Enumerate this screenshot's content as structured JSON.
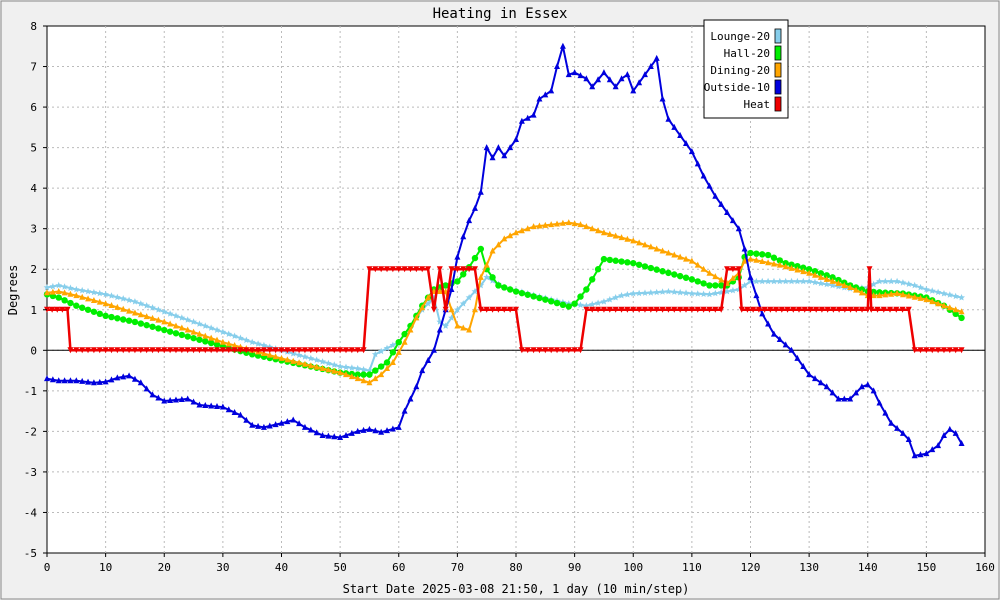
{
  "chart_data": {
    "type": "line",
    "title": "Heating in Essex",
    "xlabel": "Start Date 2025-03-08 21:50, 1 day (10 min/step)",
    "ylabel": "Degrees",
    "xlim": [
      0,
      160
    ],
    "ylim": [
      -5,
      8
    ],
    "xticks": [
      0,
      10,
      20,
      30,
      40,
      50,
      60,
      70,
      80,
      90,
      100,
      110,
      120,
      130,
      140,
      150,
      160
    ],
    "yticks": [
      -5,
      -4,
      -3,
      -2,
      -1,
      0,
      1,
      2,
      3,
      4,
      5,
      6,
      7,
      8
    ],
    "grid": true,
    "legend_position": "top-right",
    "series": [
      {
        "name": "Lounge-20",
        "color": "#87ceeb",
        "marker": "star",
        "points": [
          [
            0,
            1.55
          ],
          [
            2,
            1.6
          ],
          [
            5,
            1.5
          ],
          [
            10,
            1.38
          ],
          [
            15,
            1.2
          ],
          [
            20,
            0.95
          ],
          [
            25,
            0.7
          ],
          [
            30,
            0.45
          ],
          [
            35,
            0.2
          ],
          [
            40,
            0.0
          ],
          [
            45,
            -0.2
          ],
          [
            50,
            -0.4
          ],
          [
            53,
            -0.45
          ],
          [
            55,
            -0.5
          ],
          [
            56,
            -0.1
          ],
          [
            58,
            0.05
          ],
          [
            60,
            0.2
          ],
          [
            62,
            0.6
          ],
          [
            64,
            1.0
          ],
          [
            66,
            1.3
          ],
          [
            67,
            0.7
          ],
          [
            68,
            0.6
          ],
          [
            70,
            1.0
          ],
          [
            72,
            1.3
          ],
          [
            74,
            1.6
          ],
          [
            75,
            1.8
          ],
          [
            78,
            1.55
          ],
          [
            82,
            1.4
          ],
          [
            86,
            1.25
          ],
          [
            89,
            1.15
          ],
          [
            92,
            1.1
          ],
          [
            95,
            1.2
          ],
          [
            98,
            1.35
          ],
          [
            100,
            1.4
          ],
          [
            103,
            1.42
          ],
          [
            106,
            1.45
          ],
          [
            110,
            1.4
          ],
          [
            113,
            1.38
          ],
          [
            116,
            1.45
          ],
          [
            118,
            1.5
          ],
          [
            120,
            1.7
          ],
          [
            123,
            1.7
          ],
          [
            126,
            1.7
          ],
          [
            130,
            1.7
          ],
          [
            134,
            1.6
          ],
          [
            137,
            1.52
          ],
          [
            140,
            1.55
          ],
          [
            142,
            1.7
          ],
          [
            145,
            1.7
          ],
          [
            148,
            1.6
          ],
          [
            150,
            1.5
          ],
          [
            153,
            1.4
          ],
          [
            156,
            1.3
          ]
        ]
      },
      {
        "name": "Hall-20",
        "color": "#00ee00",
        "marker": "circle",
        "points": [
          [
            0,
            1.38
          ],
          [
            2,
            1.3
          ],
          [
            5,
            1.1
          ],
          [
            8,
            0.95
          ],
          [
            10,
            0.85
          ],
          [
            15,
            0.7
          ],
          [
            20,
            0.5
          ],
          [
            25,
            0.3
          ],
          [
            30,
            0.1
          ],
          [
            35,
            -0.1
          ],
          [
            40,
            -0.25
          ],
          [
            45,
            -0.4
          ],
          [
            50,
            -0.55
          ],
          [
            53,
            -0.6
          ],
          [
            55,
            -0.6
          ],
          [
            58,
            -0.3
          ],
          [
            60,
            0.2
          ],
          [
            62,
            0.6
          ],
          [
            64,
            1.1
          ],
          [
            66,
            1.5
          ],
          [
            68,
            1.6
          ],
          [
            70,
            1.7
          ],
          [
            72,
            2.05
          ],
          [
            74,
            2.5
          ],
          [
            75,
            2.0
          ],
          [
            77,
            1.6
          ],
          [
            80,
            1.45
          ],
          [
            85,
            1.25
          ],
          [
            89,
            1.08
          ],
          [
            90,
            1.15
          ],
          [
            92,
            1.5
          ],
          [
            94,
            2.0
          ],
          [
            95,
            2.25
          ],
          [
            100,
            2.15
          ],
          [
            105,
            1.95
          ],
          [
            110,
            1.75
          ],
          [
            113,
            1.6
          ],
          [
            116,
            1.6
          ],
          [
            118,
            1.8
          ],
          [
            119,
            2.3
          ],
          [
            120,
            2.4
          ],
          [
            123,
            2.35
          ],
          [
            126,
            2.15
          ],
          [
            130,
            2.0
          ],
          [
            134,
            1.8
          ],
          [
            137,
            1.6
          ],
          [
            140,
            1.45
          ],
          [
            143,
            1.42
          ],
          [
            146,
            1.4
          ],
          [
            150,
            1.3
          ],
          [
            153,
            1.1
          ],
          [
            156,
            0.8
          ]
        ]
      },
      {
        "name": "Dining-20",
        "color": "#ffa500",
        "marker": "triangle",
        "points": [
          [
            0,
            1.42
          ],
          [
            2,
            1.45
          ],
          [
            5,
            1.35
          ],
          [
            10,
            1.15
          ],
          [
            15,
            0.92
          ],
          [
            20,
            0.7
          ],
          [
            25,
            0.45
          ],
          [
            30,
            0.2
          ],
          [
            35,
            0.0
          ],
          [
            40,
            -0.2
          ],
          [
            45,
            -0.38
          ],
          [
            50,
            -0.55
          ],
          [
            53,
            -0.7
          ],
          [
            55,
            -0.8
          ],
          [
            57,
            -0.6
          ],
          [
            59,
            -0.3
          ],
          [
            61,
            0.2
          ],
          [
            63,
            0.8
          ],
          [
            65,
            1.3
          ],
          [
            66,
            1.45
          ],
          [
            68,
            1.45
          ],
          [
            69,
            1.0
          ],
          [
            70,
            0.6
          ],
          [
            72,
            0.5
          ],
          [
            73,
            1.0
          ],
          [
            74,
            1.8
          ],
          [
            75,
            2.1
          ],
          [
            76,
            2.45
          ],
          [
            78,
            2.75
          ],
          [
            80,
            2.9
          ],
          [
            83,
            3.05
          ],
          [
            86,
            3.1
          ],
          [
            89,
            3.15
          ],
          [
            91,
            3.1
          ],
          [
            95,
            2.9
          ],
          [
            100,
            2.7
          ],
          [
            105,
            2.45
          ],
          [
            110,
            2.2
          ],
          [
            113,
            1.9
          ],
          [
            116,
            1.65
          ],
          [
            118,
            1.9
          ],
          [
            119,
            2.2
          ],
          [
            120,
            2.25
          ],
          [
            125,
            2.1
          ],
          [
            130,
            1.9
          ],
          [
            134,
            1.7
          ],
          [
            137,
            1.55
          ],
          [
            140,
            1.35
          ],
          [
            142,
            1.35
          ],
          [
            145,
            1.4
          ],
          [
            150,
            1.25
          ],
          [
            153,
            1.1
          ],
          [
            156,
            0.95
          ]
        ]
      },
      {
        "name": "Outside-10",
        "color": "#0000dd",
        "marker": "triangle",
        "points": [
          [
            0,
            -0.7
          ],
          [
            2,
            -0.75
          ],
          [
            5,
            -0.75
          ],
          [
            8,
            -0.8
          ],
          [
            10,
            -0.78
          ],
          [
            12,
            -0.68
          ],
          [
            14,
            -0.63
          ],
          [
            16,
            -0.8
          ],
          [
            18,
            -1.1
          ],
          [
            20,
            -1.25
          ],
          [
            24,
            -1.2
          ],
          [
            26,
            -1.35
          ],
          [
            30,
            -1.4
          ],
          [
            33,
            -1.6
          ],
          [
            35,
            -1.85
          ],
          [
            37,
            -1.9
          ],
          [
            40,
            -1.8
          ],
          [
            42,
            -1.72
          ],
          [
            44,
            -1.9
          ],
          [
            47,
            -2.1
          ],
          [
            50,
            -2.15
          ],
          [
            53,
            -2.0
          ],
          [
            55,
            -1.95
          ],
          [
            57,
            -2.02
          ],
          [
            60,
            -1.9
          ],
          [
            61,
            -1.5
          ],
          [
            62,
            -1.2
          ],
          [
            63,
            -0.9
          ],
          [
            64,
            -0.5
          ],
          [
            66,
            0.0
          ],
          [
            67,
            0.5
          ],
          [
            68,
            1.0
          ],
          [
            69,
            1.5
          ],
          [
            70,
            2.3
          ],
          [
            71,
            2.8
          ],
          [
            72,
            3.2
          ],
          [
            73,
            3.5
          ],
          [
            74,
            3.9
          ],
          [
            75,
            5.0
          ],
          [
            76,
            4.75
          ],
          [
            77,
            5.0
          ],
          [
            78,
            4.8
          ],
          [
            80,
            5.2
          ],
          [
            81,
            5.65
          ],
          [
            83,
            5.8
          ],
          [
            84,
            6.2
          ],
          [
            86,
            6.4
          ],
          [
            87,
            7.0
          ],
          [
            88,
            7.5
          ],
          [
            89,
            6.8
          ],
          [
            90,
            6.85
          ],
          [
            92,
            6.7
          ],
          [
            93,
            6.5
          ],
          [
            95,
            6.85
          ],
          [
            97,
            6.5
          ],
          [
            98,
            6.7
          ],
          [
            99,
            6.8
          ],
          [
            100,
            6.4
          ],
          [
            102,
            6.8
          ],
          [
            104,
            7.2
          ],
          [
            105,
            6.2
          ],
          [
            106,
            5.7
          ],
          [
            108,
            5.3
          ],
          [
            110,
            4.9
          ],
          [
            112,
            4.3
          ],
          [
            114,
            3.8
          ],
          [
            116,
            3.4
          ],
          [
            118,
            3.0
          ],
          [
            119,
            2.5
          ],
          [
            120,
            1.8
          ],
          [
            122,
            0.9
          ],
          [
            124,
            0.4
          ],
          [
            127,
            0.0
          ],
          [
            130,
            -0.6
          ],
          [
            133,
            -0.9
          ],
          [
            135,
            -1.2
          ],
          [
            137,
            -1.2
          ],
          [
            139,
            -0.9
          ],
          [
            140,
            -0.85
          ],
          [
            141,
            -1.0
          ],
          [
            142,
            -1.3
          ],
          [
            144,
            -1.8
          ],
          [
            146,
            -2.05
          ],
          [
            147,
            -2.2
          ],
          [
            148,
            -2.6
          ],
          [
            150,
            -2.55
          ],
          [
            152,
            -2.35
          ],
          [
            153,
            -2.1
          ],
          [
            154,
            -1.95
          ],
          [
            155,
            -2.05
          ],
          [
            156,
            -2.3
          ]
        ]
      },
      {
        "name": "Heat",
        "color": "#ee0000",
        "marker": "triangle-down",
        "points": [
          [
            0,
            1.0
          ],
          [
            3.5,
            1.0
          ],
          [
            4,
            0.0
          ],
          [
            54,
            0.0
          ],
          [
            55,
            2.0
          ],
          [
            65,
            2.0
          ],
          [
            66,
            1.0
          ],
          [
            67,
            2.0
          ],
          [
            68,
            1.0
          ],
          [
            69,
            2.0
          ],
          [
            73,
            2.0
          ],
          [
            74,
            1.0
          ],
          [
            80,
            1.0
          ],
          [
            81,
            0.0
          ],
          [
            91,
            0.0
          ],
          [
            92,
            1.0
          ],
          [
            115,
            1.0
          ],
          [
            116,
            2.0
          ],
          [
            118,
            2.0
          ],
          [
            118.5,
            1.0
          ],
          [
            140,
            1.0
          ],
          [
            140.3,
            2.0
          ],
          [
            140.6,
            1.0
          ],
          [
            147,
            1.0
          ],
          [
            148,
            0.0
          ],
          [
            156,
            0.0
          ]
        ]
      }
    ]
  }
}
